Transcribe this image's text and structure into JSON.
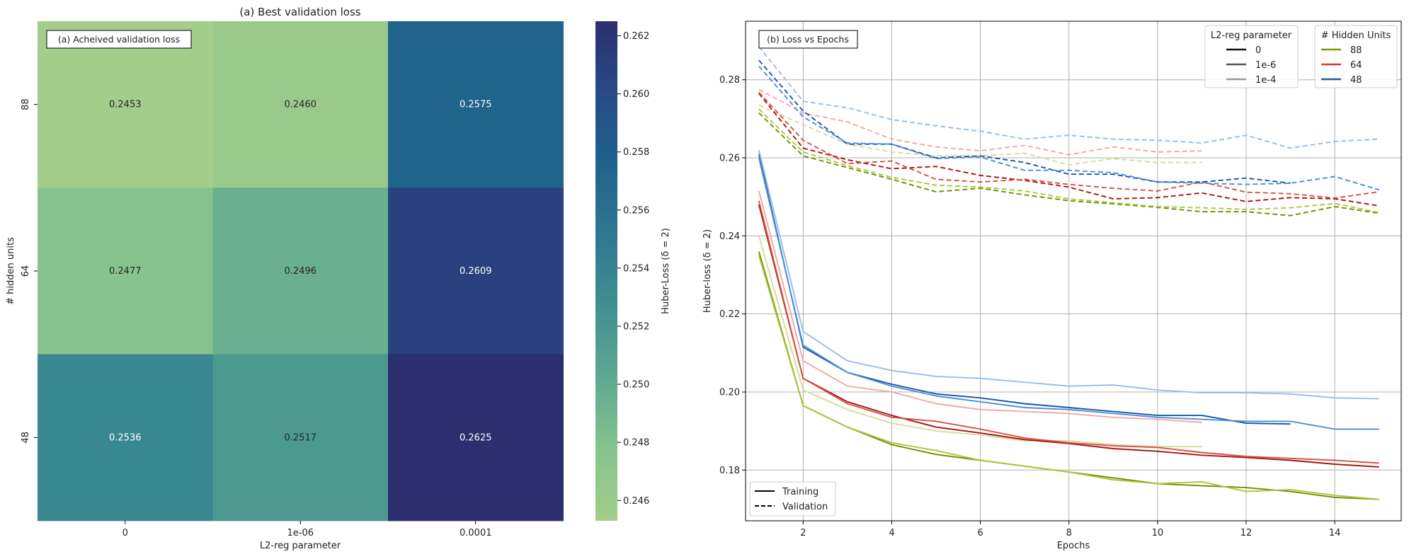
{
  "chart_data": [
    {
      "type": "heatmap",
      "title": "(a) Best validation loss",
      "annotation": "(a) Acheived validation loss",
      "xlabel": "L2-reg parameter",
      "ylabel": "# hidden units",
      "x_categories": [
        "0",
        "1e-06",
        "0.0001"
      ],
      "y_categories": [
        "88",
        "64",
        "48"
      ],
      "values": [
        [
          0.2453,
          0.246,
          0.2575
        ],
        [
          0.2477,
          0.2496,
          0.2609
        ],
        [
          0.2536,
          0.2517,
          0.2625
        ]
      ],
      "colorbar": {
        "label": "Huber-Loss (δ = 2)",
        "range": [
          0.2453,
          0.2625
        ],
        "ticks": [
          "0.246",
          "0.248",
          "0.250",
          "0.252",
          "0.254",
          "0.256",
          "0.258",
          "0.260",
          "0.262"
        ],
        "tick_values": [
          0.246,
          0.248,
          0.25,
          0.252,
          0.254,
          0.256,
          0.258,
          0.26,
          0.262
        ],
        "colormap_stops": [
          "#a2cd8a",
          "#86c38d",
          "#5fa891",
          "#3f9090",
          "#2e7892",
          "#1f638b",
          "#274b87",
          "#2c2f6e"
        ]
      }
    },
    {
      "type": "line",
      "annotation": "(b) Loss vs Epochs",
      "xlabel": "Epochs",
      "ylabel": "Huber-loss (δ = 2)",
      "xlim": [
        0.7,
        15.5
      ],
      "ylim": [
        0.167,
        0.295
      ],
      "x_ticks": [
        2,
        4,
        6,
        8,
        10,
        12,
        14
      ],
      "y_ticks": [
        0.18,
        0.2,
        0.22,
        0.24,
        0.26,
        0.28
      ],
      "y_tick_labels": [
        "0.18",
        "0.20",
        "0.22",
        "0.24",
        "0.26",
        "0.28"
      ],
      "grid": true,
      "legend_l2": {
        "title": "L2-reg parameter",
        "entries": [
          {
            "label": "0",
            "color": "#111111"
          },
          {
            "label": "1e-6",
            "color": "#555555"
          },
          {
            "label": "1e-4",
            "color": "#999999"
          }
        ]
      },
      "legend_units": {
        "title": "# Hidden Units",
        "entries": [
          {
            "label": "88",
            "color": "#7a9a01"
          },
          {
            "label": "64",
            "color": "#d03c2e"
          },
          {
            "label": "48",
            "color": "#1c5aa0"
          }
        ]
      },
      "legend_style": {
        "entries": [
          {
            "label": "Training",
            "dash": "solid"
          },
          {
            "label": "Validation",
            "dash": "dashed"
          }
        ]
      },
      "series": [
        {
          "units": "88",
          "l2": "0",
          "kind": "train",
          "color": "#6f8f00",
          "x": [
            1,
            2,
            3,
            4,
            5,
            6,
            7,
            8,
            9,
            10,
            11,
            12,
            13,
            14,
            15
          ],
          "values": [
            0.236,
            0.1965,
            0.191,
            0.1865,
            0.184,
            0.1825,
            0.181,
            0.1795,
            0.178,
            0.1765,
            0.176,
            0.1755,
            0.1745,
            0.173,
            0.1725
          ]
        },
        {
          "units": "88",
          "l2": "1e-6",
          "kind": "train",
          "color": "#a8c83c",
          "x": [
            1,
            2,
            3,
            4,
            5,
            6,
            7,
            8,
            9,
            10,
            11,
            12,
            13,
            14,
            15
          ],
          "values": [
            0.235,
            0.1965,
            0.191,
            0.187,
            0.185,
            0.1825,
            0.181,
            0.1795,
            0.1775,
            0.1765,
            0.177,
            0.1745,
            0.175,
            0.1735,
            0.1725
          ]
        },
        {
          "units": "88",
          "l2": "1e-4",
          "kind": "train",
          "color": "#d8dc98",
          "x": [
            1,
            2,
            3,
            4,
            5,
            6,
            7,
            8,
            9,
            10,
            11
          ],
          "values": [
            0.24,
            0.2005,
            0.1955,
            0.192,
            0.19,
            0.189,
            0.1875,
            0.1875,
            0.1865,
            0.186,
            0.186
          ]
        },
        {
          "units": "64",
          "l2": "0",
          "kind": "train",
          "color": "#a8150f",
          "x": [
            1,
            2,
            3,
            4,
            5,
            6,
            7,
            8,
            9,
            10,
            11,
            12,
            13,
            14,
            15
          ],
          "values": [
            0.248,
            0.2035,
            0.1975,
            0.194,
            0.191,
            0.1895,
            0.1878,
            0.1868,
            0.1855,
            0.1848,
            0.1838,
            0.1832,
            0.1825,
            0.1815,
            0.1808
          ]
        },
        {
          "units": "64",
          "l2": "1e-6",
          "kind": "train",
          "color": "#d65348",
          "x": [
            1,
            2,
            3,
            4,
            5,
            6,
            7,
            8,
            9,
            10,
            11,
            12,
            13,
            14,
            15
          ],
          "values": [
            0.249,
            0.2035,
            0.197,
            0.1935,
            0.1925,
            0.1905,
            0.1882,
            0.187,
            0.1862,
            0.1858,
            0.1845,
            0.1835,
            0.183,
            0.1825,
            0.1818
          ]
        },
        {
          "units": "64",
          "l2": "1e-4",
          "kind": "train",
          "color": "#f4a8a2",
          "x": [
            1,
            2,
            3,
            4,
            5,
            6,
            7,
            8,
            9,
            10,
            11
          ],
          "values": [
            0.2515,
            0.208,
            0.2015,
            0.2,
            0.197,
            0.1955,
            0.195,
            0.1945,
            0.1935,
            0.193,
            0.1922
          ]
        },
        {
          "units": "48",
          "l2": "0",
          "kind": "train",
          "color": "#1856a8",
          "x": [
            1,
            2,
            3,
            4,
            5,
            6,
            7,
            8,
            9,
            10,
            11,
            12,
            13
          ],
          "values": [
            0.261,
            0.2115,
            0.205,
            0.202,
            0.1995,
            0.1985,
            0.197,
            0.196,
            0.195,
            0.194,
            0.194,
            0.192,
            0.1918
          ]
        },
        {
          "units": "48",
          "l2": "1e-6",
          "kind": "train",
          "color": "#4c8fd8",
          "x": [
            1,
            2,
            3,
            4,
            5,
            6,
            7,
            8,
            9,
            10,
            11,
            12,
            13,
            14,
            15
          ],
          "values": [
            0.26,
            0.212,
            0.205,
            0.2015,
            0.199,
            0.1975,
            0.196,
            0.1955,
            0.1945,
            0.1935,
            0.193,
            0.1925,
            0.1925,
            0.1905,
            0.1905
          ]
        },
        {
          "units": "48",
          "l2": "1e-4",
          "kind": "train",
          "color": "#98bde6",
          "x": [
            1,
            2,
            3,
            4,
            5,
            6,
            7,
            8,
            9,
            10,
            11,
            12,
            13,
            14,
            15
          ],
          "values": [
            0.262,
            0.2155,
            0.208,
            0.2055,
            0.204,
            0.2035,
            0.2025,
            0.2015,
            0.2018,
            0.2005,
            0.1998,
            0.1998,
            0.1995,
            0.1985,
            0.1983
          ]
        },
        {
          "units": "88",
          "l2": "0",
          "kind": "val",
          "color": "#6f8f00",
          "x": [
            1,
            2,
            3,
            4,
            5,
            6,
            7,
            8,
            9,
            10,
            11,
            12,
            13,
            14,
            15
          ],
          "values": [
            0.2715,
            0.2605,
            0.2575,
            0.2545,
            0.2513,
            0.2522,
            0.2505,
            0.249,
            0.2482,
            0.2473,
            0.2462,
            0.2462,
            0.2452,
            0.2475,
            0.2458
          ]
        },
        {
          "units": "88",
          "l2": "1e-6",
          "kind": "val",
          "color": "#a8c83c",
          "x": [
            1,
            2,
            3,
            4,
            5,
            6,
            7,
            8,
            9,
            10,
            11,
            12,
            13,
            14,
            15
          ],
          "values": [
            0.2725,
            0.2615,
            0.258,
            0.255,
            0.253,
            0.2525,
            0.2515,
            0.2495,
            0.2485,
            0.2475,
            0.2472,
            0.2468,
            0.2472,
            0.2483,
            0.246
          ]
        },
        {
          "units": "88",
          "l2": "1e-4",
          "kind": "val",
          "color": "#d8dc98",
          "x": [
            1,
            2,
            3,
            4,
            5,
            6,
            7,
            8,
            9,
            10,
            11
          ],
          "values": [
            0.2735,
            0.2685,
            0.2635,
            0.2615,
            0.2605,
            0.2605,
            0.2612,
            0.2582,
            0.2598,
            0.2588,
            0.2588
          ]
        },
        {
          "units": "64",
          "l2": "0",
          "kind": "val",
          "color": "#a8150f",
          "x": [
            1,
            2,
            3,
            4,
            5,
            6,
            7,
            8,
            9,
            10,
            11,
            12,
            13,
            14,
            15
          ],
          "values": [
            0.2765,
            0.2625,
            0.2595,
            0.2572,
            0.2578,
            0.2555,
            0.2542,
            0.2525,
            0.2495,
            0.2498,
            0.251,
            0.2488,
            0.2498,
            0.2495,
            0.2477
          ]
        },
        {
          "units": "64",
          "l2": "1e-6",
          "kind": "val",
          "color": "#d65348",
          "x": [
            1,
            2,
            3,
            4,
            5,
            6,
            7,
            8,
            9,
            10,
            11,
            12,
            13,
            14,
            15
          ],
          "values": [
            0.2768,
            0.2645,
            0.2585,
            0.2592,
            0.2545,
            0.2538,
            0.2545,
            0.2532,
            0.2522,
            0.2515,
            0.2538,
            0.2512,
            0.2508,
            0.2497,
            0.2513
          ]
        },
        {
          "units": "64",
          "l2": "1e-4",
          "kind": "val",
          "color": "#f4a8a2",
          "x": [
            1,
            2,
            3,
            4,
            5,
            6,
            7,
            8,
            9,
            10,
            11
          ],
          "values": [
            0.2775,
            0.2715,
            0.2692,
            0.2648,
            0.2628,
            0.2618,
            0.2632,
            0.2608,
            0.2628,
            0.2615,
            0.2618
          ]
        },
        {
          "units": "48",
          "l2": "0",
          "kind": "val",
          "color": "#1856a8",
          "x": [
            1,
            2,
            3,
            4,
            5,
            6,
            7,
            8,
            9,
            10,
            11,
            12,
            13
          ],
          "values": [
            0.285,
            0.272,
            0.2635,
            0.2635,
            0.26,
            0.2605,
            0.2588,
            0.2558,
            0.2558,
            0.2538,
            0.2538,
            0.2548,
            0.2535
          ]
        },
        {
          "units": "48",
          "l2": "1e-6",
          "kind": "val",
          "color": "#4c8fd8",
          "x": [
            1,
            2,
            3,
            4,
            5,
            6,
            7,
            8,
            9,
            10,
            11,
            12,
            13,
            14,
            15
          ],
          "values": [
            0.2835,
            0.2705,
            0.2638,
            0.2635,
            0.2598,
            0.2602,
            0.2568,
            0.2568,
            0.2562,
            0.2538,
            0.2535,
            0.2532,
            0.2535,
            0.2552,
            0.2518
          ]
        },
        {
          "units": "48",
          "l2": "1e-4",
          "kind": "val",
          "color": "#98bde6",
          "x": [
            1,
            2,
            3,
            4,
            5,
            6,
            7,
            8,
            9,
            10,
            11,
            12,
            13,
            14,
            15
          ],
          "values": [
            0.2885,
            0.2745,
            0.2728,
            0.2698,
            0.2682,
            0.2668,
            0.2648,
            0.2658,
            0.2648,
            0.2645,
            0.2638,
            0.2658,
            0.2625,
            0.2642,
            0.2648
          ]
        }
      ]
    }
  ]
}
